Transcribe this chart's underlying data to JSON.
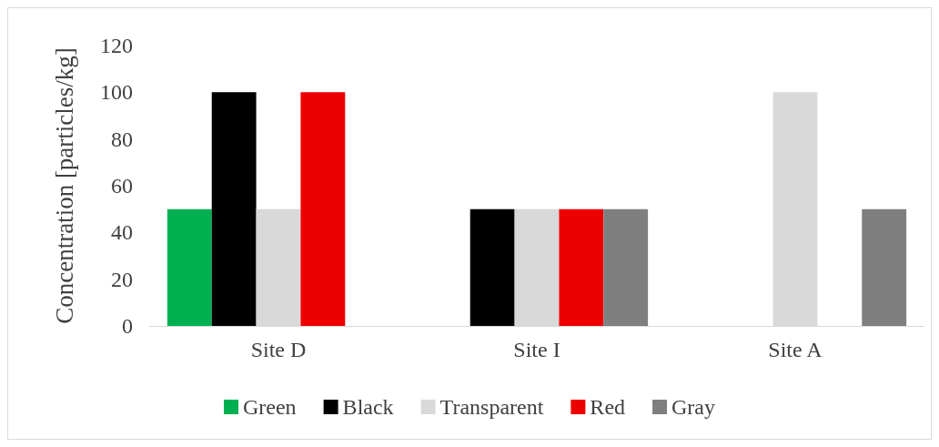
{
  "chart_data": {
    "type": "bar",
    "ylabel": "Concentration [particles/kg]",
    "categories": [
      "Site D",
      "Site I",
      "Site A"
    ],
    "series": [
      {
        "name": "Green",
        "color": "#00b050",
        "values": [
          50,
          0,
          0
        ]
      },
      {
        "name": "Black",
        "color": "#000000",
        "values": [
          100,
          50,
          0
        ]
      },
      {
        "name": "Transparent",
        "color": "#d9d9d9",
        "values": [
          50,
          50,
          100
        ]
      },
      {
        "name": "Red",
        "color": "#ee0000",
        "values": [
          100,
          50,
          0
        ]
      },
      {
        "name": "Gray",
        "color": "#7f7f7f",
        "values": [
          0,
          50,
          50
        ]
      }
    ],
    "ylim": [
      0,
      120
    ],
    "yticks": [
      0,
      20,
      40,
      60,
      80,
      100,
      120
    ],
    "grid": false,
    "legend": "bottom"
  }
}
